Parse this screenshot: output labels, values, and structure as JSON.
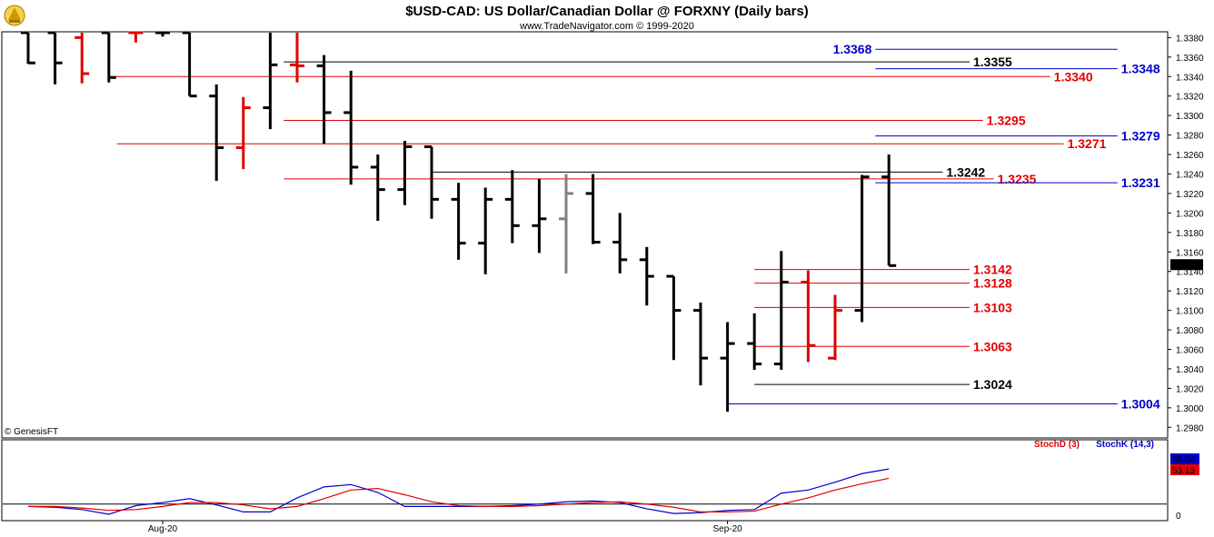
{
  "chart_data": [
    {
      "type": "ohlc",
      "title": "$USD-CAD:  US Dollar/Canadian Dollar @ FORXNY  (Daily bars)",
      "subtitle": "www.TradeNavigator.com © 1999-2020",
      "copyright": "© GenesisFT",
      "ylim": [
        1.297,
        1.3385
      ],
      "y_ticks": [
        "1.3380",
        "1.3360",
        "1.3340",
        "1.3320",
        "1.3300",
        "1.3280",
        "1.3260",
        "1.3240",
        "1.3220",
        "1.3200",
        "1.3180",
        "1.3160",
        "1.3140",
        "1.3120",
        "1.3100",
        "1.3080",
        "1.3060",
        "1.3040",
        "1.3020",
        "1.3000",
        "1.2980"
      ],
      "x_labels": [
        {
          "label": "Aug-20",
          "bar_index": 5
        },
        {
          "label": "Sep-20",
          "bar_index": 26
        }
      ],
      "last_price": "1.3146",
      "bars": [
        {
          "open": 1.3385,
          "high": 1.3385,
          "low": 1.3353,
          "close": 1.3354,
          "color": "#000000"
        },
        {
          "open": 1.3385,
          "high": 1.3385,
          "low": 1.3332,
          "close": 1.3354,
          "color": "#000000"
        },
        {
          "open": 1.338,
          "high": 1.3385,
          "low": 1.3333,
          "close": 1.3343,
          "color": "#e00000"
        },
        {
          "open": 1.3385,
          "high": 1.3385,
          "low": 1.3334,
          "close": 1.3339,
          "color": "#000000"
        },
        {
          "open": 1.3385,
          "high": 1.3385,
          "low": 1.3375,
          "close": 1.3385,
          "color": "#e00000"
        },
        {
          "open": 1.3385,
          "high": 1.3385,
          "low": 1.3381,
          "close": 1.3385,
          "color": "#000000"
        },
        {
          "open": 1.3385,
          "high": 1.3385,
          "low": 1.332,
          "close": 1.332,
          "color": "#000000"
        },
        {
          "open": 1.332,
          "high": 1.3332,
          "low": 1.3233,
          "close": 1.3267,
          "color": "#000000"
        },
        {
          "open": 1.3267,
          "high": 1.3319,
          "low": 1.3245,
          "close": 1.3308,
          "color": "#e00000"
        },
        {
          "open": 1.3308,
          "high": 1.3385,
          "low": 1.3286,
          "close": 1.3352,
          "color": "#000000"
        },
        {
          "open": 1.3352,
          "high": 1.3385,
          "low": 1.3334,
          "close": 1.3351,
          "color": "#e00000"
        },
        {
          "open": 1.3351,
          "high": 1.3362,
          "low": 1.3271,
          "close": 1.3303,
          "color": "#000000"
        },
        {
          "open": 1.3303,
          "high": 1.3346,
          "low": 1.3229,
          "close": 1.3247,
          "color": "#000000"
        },
        {
          "open": 1.3247,
          "high": 1.326,
          "low": 1.3192,
          "close": 1.3224,
          "color": "#000000"
        },
        {
          "open": 1.3224,
          "high": 1.3274,
          "low": 1.3208,
          "close": 1.3268,
          "color": "#000000"
        },
        {
          "open": 1.3268,
          "high": 1.3268,
          "low": 1.3194,
          "close": 1.3214,
          "color": "#000000"
        },
        {
          "open": 1.3214,
          "high": 1.3231,
          "low": 1.3152,
          "close": 1.3169,
          "color": "#000000"
        },
        {
          "open": 1.3169,
          "high": 1.3226,
          "low": 1.3137,
          "close": 1.3214,
          "color": "#000000"
        },
        {
          "open": 1.3214,
          "high": 1.3244,
          "low": 1.3169,
          "close": 1.3187,
          "color": "#000000"
        },
        {
          "open": 1.3187,
          "high": 1.3235,
          "low": 1.3159,
          "close": 1.3194,
          "color": "#000000"
        },
        {
          "open": 1.3194,
          "high": 1.324,
          "low": 1.3138,
          "close": 1.322,
          "color": "#808080"
        },
        {
          "open": 1.322,
          "high": 1.324,
          "low": 1.3168,
          "close": 1.317,
          "color": "#000000"
        },
        {
          "open": 1.317,
          "high": 1.32,
          "low": 1.3138,
          "close": 1.3152,
          "color": "#000000"
        },
        {
          "open": 1.3152,
          "high": 1.3165,
          "low": 1.3105,
          "close": 1.3135,
          "color": "#000000"
        },
        {
          "open": 1.3135,
          "high": 1.3135,
          "low": 1.3049,
          "close": 1.31,
          "color": "#000000"
        },
        {
          "open": 1.31,
          "high": 1.3108,
          "low": 1.3023,
          "close": 1.3051,
          "color": "#000000"
        },
        {
          "open": 1.3051,
          "high": 1.3088,
          "low": 1.2996,
          "close": 1.3066,
          "color": "#000000"
        },
        {
          "open": 1.3066,
          "high": 1.3097,
          "low": 1.3039,
          "close": 1.3045,
          "color": "#000000"
        },
        {
          "open": 1.3045,
          "high": 1.3161,
          "low": 1.3039,
          "close": 1.3129,
          "color": "#000000"
        },
        {
          "open": 1.3129,
          "high": 1.3141,
          "low": 1.3047,
          "close": 1.3064,
          "color": "#e00000"
        },
        {
          "open": 1.3051,
          "high": 1.3116,
          "low": 1.3049,
          "close": 1.31,
          "color": "#e00000"
        },
        {
          "open": 1.31,
          "high": 1.3239,
          "low": 1.3088,
          "close": 1.3237,
          "color": "#000000"
        },
        {
          "open": 1.3237,
          "high": 1.326,
          "low": 1.3146,
          "close": 1.3146,
          "color": "#000000"
        }
      ],
      "levels": [
        {
          "value": 1.3368,
          "label": "1.3368",
          "color": "#0000cc",
          "side": "left",
          "from": 31.5,
          "to": 40.5
        },
        {
          "value": 1.3355,
          "label": "1.3355",
          "color": "#000000",
          "side": "right",
          "from": 9.5,
          "to": 35.0
        },
        {
          "value": 1.3348,
          "label": "1.3348",
          "color": "#0000cc",
          "side": "right",
          "from": 31.5,
          "to": 40.5
        },
        {
          "value": 1.334,
          "label": "1.3340",
          "color": "#e00000",
          "side": "right",
          "from": 3.0,
          "to": 38.0
        },
        {
          "value": 1.3295,
          "label": "1.3295",
          "color": "#e00000",
          "side": "right",
          "from": 9.5,
          "to": 35.5
        },
        {
          "value": 1.3279,
          "label": "1.3279",
          "color": "#0000cc",
          "side": "right",
          "from": 31.5,
          "to": 40.5
        },
        {
          "value": 1.3271,
          "label": "1.3271",
          "color": "#e00000",
          "side": "right",
          "from": 3.3,
          "to": 38.5
        },
        {
          "value": 1.3242,
          "label": "1.3242",
          "color": "#000000",
          "side": "right",
          "from": 15.0,
          "to": 34.0
        },
        {
          "value": 1.3235,
          "label": "1.3235",
          "color": "#e00000",
          "side": "right",
          "from": 9.5,
          "to": 35.9
        },
        {
          "value": 1.3231,
          "label": "1.3231",
          "color": "#0000cc",
          "side": "right",
          "from": 31.5,
          "to": 40.5
        },
        {
          "value": 1.3142,
          "label": "1.3142",
          "color": "#e00000",
          "side": "right",
          "from": 27.0,
          "to": 35.0
        },
        {
          "value": 1.3128,
          "label": "1.3128",
          "color": "#e00000",
          "side": "right",
          "from": 27.0,
          "to": 35.0
        },
        {
          "value": 1.3103,
          "label": "1.3103",
          "color": "#e00000",
          "side": "right",
          "from": 27.0,
          "to": 35.0
        },
        {
          "value": 1.3063,
          "label": "1.3063",
          "color": "#e00000",
          "side": "right",
          "from": 27.0,
          "to": 35.0
        },
        {
          "value": 1.3024,
          "label": "1.3024",
          "color": "#000000",
          "side": "right",
          "from": 27.0,
          "to": 35.0
        },
        {
          "value": 1.3004,
          "label": "1.3004",
          "color": "#0000cc",
          "side": "right",
          "from": 26.0,
          "to": 40.5
        }
      ]
    },
    {
      "type": "line",
      "panel": "stochastic",
      "ylim": [
        0,
        100
      ],
      "y_ticks": [
        "0"
      ],
      "reference_line": 20,
      "legend": [
        {
          "name": "StochD (3)",
          "color": "#e00000"
        },
        {
          "name": "StochK (14,3)",
          "color": "#0000cc"
        }
      ],
      "last_values": [
        {
          "label": "65.04",
          "color": "#0000cc"
        },
        {
          "label": "53.13",
          "color": "#e00000"
        }
      ],
      "series": [
        {
          "name": "StochK (14,3)",
          "color": "#0000cc",
          "x": [
            0,
            1,
            2,
            3,
            4,
            5,
            6,
            7,
            8,
            9,
            10,
            11,
            12,
            13,
            14,
            15,
            16,
            17,
            18,
            19,
            20,
            21,
            22,
            23,
            24,
            25,
            26,
            27,
            28,
            29,
            30,
            31,
            32
          ],
          "values": [
            17,
            16,
            13,
            7,
            18,
            22,
            27,
            19,
            10,
            10,
            28,
            42,
            45,
            35,
            17,
            17,
            17,
            17,
            18,
            20,
            23,
            24,
            22,
            14,
            8,
            9,
            12,
            13,
            34,
            38,
            48,
            59,
            65
          ]
        },
        {
          "name": "StochD (3)",
          "color": "#e00000",
          "x": [
            0,
            1,
            2,
            3,
            4,
            5,
            6,
            7,
            8,
            9,
            10,
            11,
            12,
            13,
            14,
            15,
            16,
            17,
            18,
            19,
            20,
            21,
            22,
            23,
            24,
            25,
            26,
            27,
            28,
            29,
            30,
            31,
            32
          ],
          "values": [
            17,
            17,
            15,
            12,
            13,
            17,
            22,
            22,
            19,
            14,
            17,
            27,
            38,
            40,
            32,
            23,
            18,
            17,
            17,
            18,
            20,
            22,
            23,
            20,
            16,
            10,
            10,
            11,
            20,
            28,
            38,
            46,
            53
          ]
        }
      ]
    }
  ]
}
